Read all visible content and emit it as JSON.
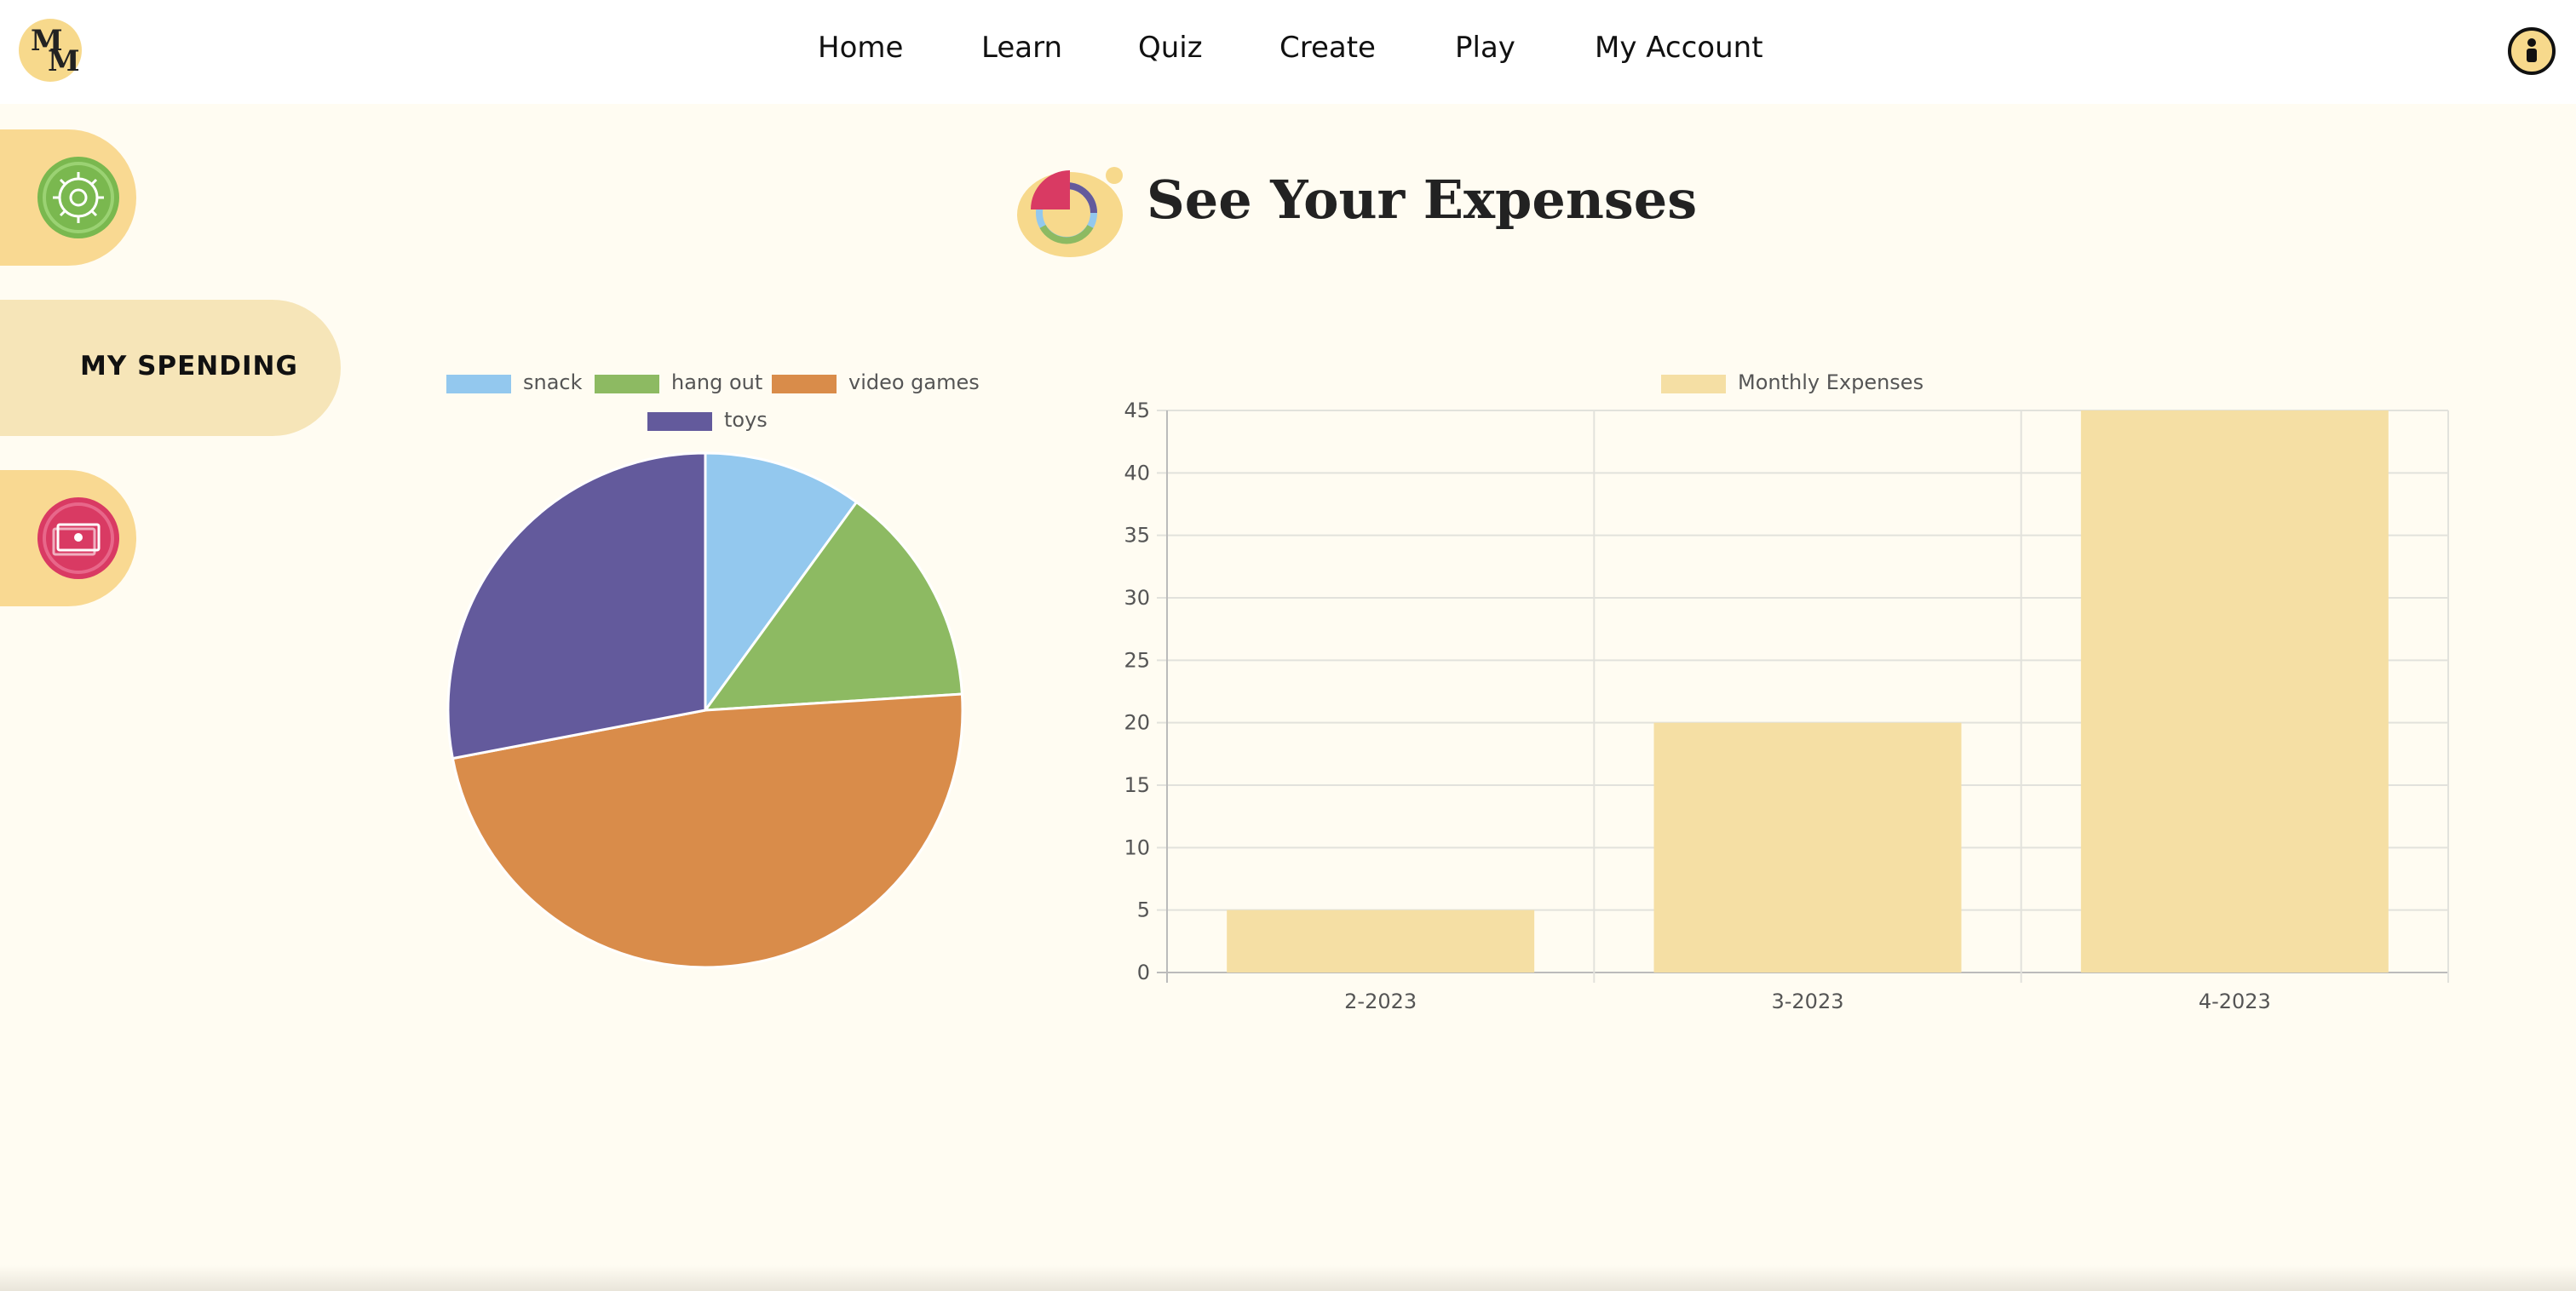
{
  "nav": {
    "logo_letters": [
      "M",
      "M"
    ],
    "links": [
      "Home",
      "Learn",
      "Quiz",
      "Create",
      "Play",
      "My Account"
    ]
  },
  "sidebar": {
    "spending_label": "MY SPENDING",
    "icons": [
      "gear-icon",
      "money-icon"
    ],
    "colors": {
      "gear": "#7ab84f",
      "money": "#d93a63",
      "tab": "#f9d992",
      "active_tab": "#f6e5b8"
    }
  },
  "page": {
    "title": "See Your Expenses",
    "title_icon": "pie-chart-icon"
  },
  "chart_data": [
    {
      "type": "pie",
      "categories": [
        "snack",
        "hang out",
        "video games",
        "toys"
      ],
      "values": [
        10,
        14,
        48,
        28
      ],
      "colors": [
        "#93c8ee",
        "#8dba62",
        "#d98c4a",
        "#635a9c"
      ],
      "legend": "top"
    },
    {
      "type": "bar",
      "categories": [
        "2-2023",
        "3-2023",
        "4-2023"
      ],
      "series": [
        {
          "name": "Monthly Expenses",
          "values": [
            5,
            20,
            45
          ]
        }
      ],
      "ylim": [
        0,
        45
      ],
      "yticks": [
        0,
        5,
        10,
        15,
        20,
        25,
        30,
        35,
        40,
        45
      ],
      "grid": true,
      "legend": "top",
      "bar_color": "#f5dfa4"
    }
  ]
}
